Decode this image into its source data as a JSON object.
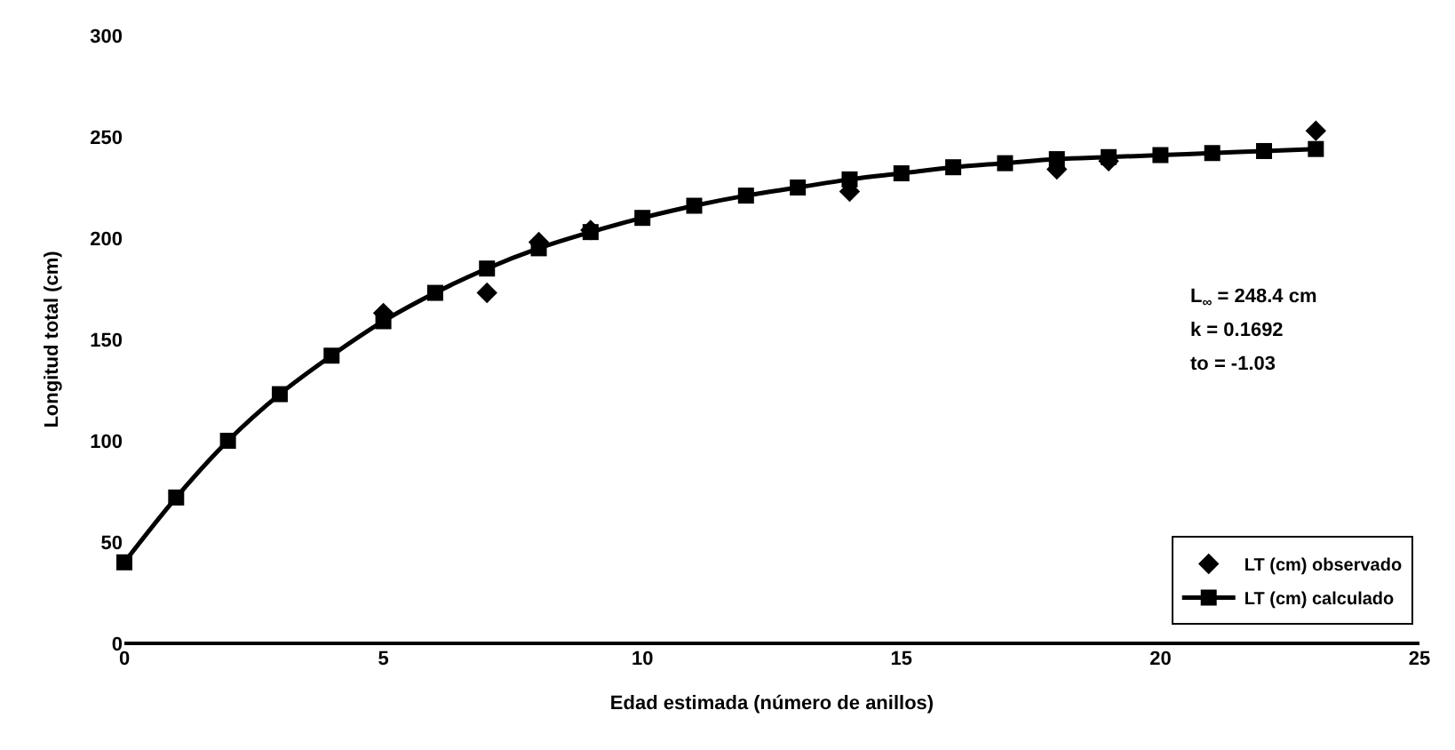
{
  "chart_data": {
    "type": "line",
    "xlabel": "Edad estimada (número de anillos)",
    "ylabel": "Longitud total (cm)",
    "xlim": [
      0,
      25
    ],
    "xticks": [
      0,
      5,
      10,
      15,
      20,
      25
    ],
    "ylim": [
      0,
      300
    ],
    "yticks": [
      0,
      50,
      100,
      150,
      200,
      250,
      300
    ],
    "legend": "bottom right",
    "annotations": [
      "L$_{∞}$ = 248.4 cm",
      "k = 0.1692",
      "to = -1.03"
    ],
    "series": [
      {
        "name": "LT (cm) observado",
        "type": "scatter",
        "marker": "diamond",
        "color": "#000000",
        "x": [
          5,
          7,
          8,
          9,
          14,
          18,
          19,
          23
        ],
        "values": [
          163,
          173,
          198,
          204,
          223,
          234,
          238,
          253
        ]
      },
      {
        "name": "LT (cm) calculado",
        "marker": "square",
        "line_style": "solid",
        "color": "#000000",
        "x": [
          0,
          1,
          2,
          3,
          4,
          5,
          6,
          7,
          8,
          9,
          10,
          11,
          12,
          13,
          14,
          15,
          16,
          17,
          18,
          19,
          20,
          21,
          22,
          23
        ],
        "values": [
          40,
          72,
          100,
          123,
          142,
          159,
          173,
          185,
          195,
          203,
          210,
          216,
          221,
          225,
          229,
          232,
          235,
          237,
          239,
          240,
          241,
          242,
          243,
          244
        ]
      }
    ]
  }
}
